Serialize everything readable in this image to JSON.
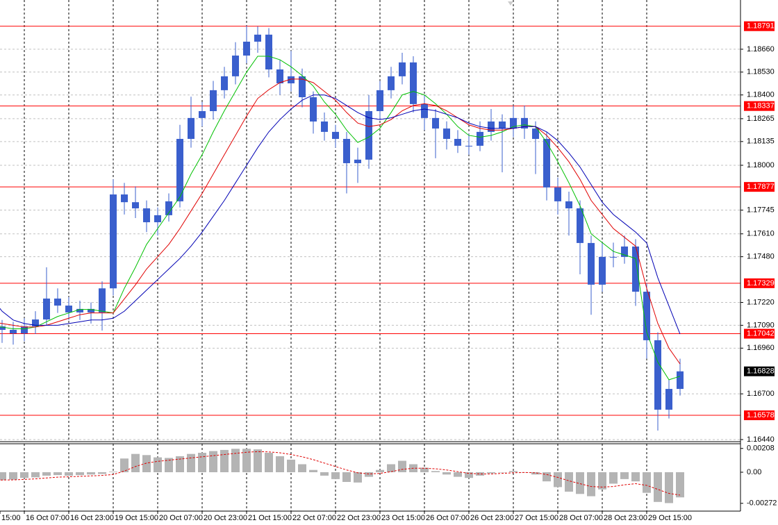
{
  "chart_data": {
    "type": "candlestick",
    "categories": [
      "15:00",
      null,
      null,
      null,
      "16 Oct 07:00",
      null,
      null,
      null,
      "16 Oct 23:00",
      null,
      null,
      null,
      "19 Oct 15:00",
      null,
      null,
      null,
      "20 Oct 07:00",
      null,
      null,
      null,
      "20 Oct 23:00",
      null,
      null,
      null,
      "21 Oct 15:00",
      null,
      null,
      null,
      "22 Oct 07:00",
      null,
      null,
      null,
      "22 Oct 23:00",
      null,
      null,
      null,
      "23 Oct 15:00",
      null,
      null,
      null,
      "26 Oct 07:00",
      null,
      null,
      null,
      "26 Oct 23:00",
      null,
      null,
      null,
      "27 Oct 15:00",
      null,
      null,
      null,
      "28 Oct 07:00",
      null,
      null,
      null,
      "28 Oct 23:00",
      null,
      null,
      null,
      "29 Oct 15:00",
      null,
      null,
      null
    ],
    "open": [
      1.17163,
      1.17123,
      1.17084,
      1.17064,
      1.17044,
      1.17084,
      1.17123,
      1.17242,
      1.17202,
      1.17163,
      1.17183,
      1.17163,
      1.173,
      1.17834,
      1.1779,
      1.17755,
      1.17676,
      1.17716,
      1.17795,
      1.1815,
      1.18269,
      1.18308,
      1.18427,
      1.18506,
      1.18624,
      1.18703,
      1.18743,
      1.18545,
      1.18466,
      1.18506,
      1.18387,
      1.18249,
      1.1819,
      1.1815,
      1.18012,
      1.18032,
      1.18308,
      1.18427,
      1.18506,
      1.18585,
      1.18348,
      1.18269,
      1.18209,
      1.1815,
      1.18111,
      1.18111,
      1.1819,
      1.18249,
      1.18209,
      1.18269,
      1.18209,
      1.1815,
      1.17874,
      1.17795,
      1.17755,
      1.17558,
      1.17321,
      1.17479,
      1.17479,
      1.17538,
      1.17281,
      1.17005,
      1.1661,
      1.16728
    ],
    "high": [
      1.172,
      1.1716,
      1.1712,
      1.1711,
      1.1713,
      1.1717,
      1.1742,
      1.173,
      1.1725,
      1.1723,
      1.1722,
      1.1734,
      1.1792,
      1.179,
      1.1788,
      1.178,
      1.1776,
      1.1784,
      1.1823,
      1.1839,
      1.1836,
      1.1848,
      1.1856,
      1.187,
      1.18794,
      1.1879,
      1.1878,
      1.186,
      1.1865,
      1.1855,
      1.1842,
      1.183,
      1.1823,
      1.1819,
      1.181,
      1.184,
      1.1848,
      1.1856,
      1.1864,
      1.1862,
      1.184,
      1.1832,
      1.1825,
      1.182,
      1.1818,
      1.1825,
      1.1832,
      1.1829,
      1.1834,
      1.1834,
      1.1825,
      1.1819,
      1.1793,
      1.1785,
      1.178,
      1.176,
      1.1756,
      1.1756,
      1.176,
      1.1758,
      1.1733,
      1.1705,
      1.1678,
      1.169
    ],
    "low": [
      1.1705,
      1.1704,
      1.1699,
      1.1698,
      1.17,
      1.1704,
      1.1709,
      1.1716,
      1.1712,
      1.1712,
      1.171,
      1.1706,
      1.1726,
      1.1772,
      1.177,
      1.1762,
      1.176,
      1.1768,
      1.1776,
      1.181,
      1.1822,
      1.1826,
      1.1838,
      1.1846,
      1.1858,
      1.1864,
      1.185,
      1.184,
      1.1842,
      1.1833,
      1.1818,
      1.1814,
      1.181,
      1.1784,
      1.179,
      1.1798,
      1.1826,
      1.1838,
      1.1846,
      1.183,
      1.182,
      1.1804,
      1.1809,
      1.1807,
      1.1806,
      1.1808,
      1.1814,
      1.1796,
      1.1816,
      1.1815,
      1.1795,
      1.178,
      1.1772,
      1.176,
      1.1738,
      1.1715,
      1.1728,
      1.1742,
      1.1744,
      1.172,
      1.169,
      1.16491,
      1.1656,
      1.1669
    ],
    "close": [
      1.17123,
      1.17084,
      1.17064,
      1.17044,
      1.17084,
      1.17123,
      1.17242,
      1.17202,
      1.17163,
      1.17183,
      1.17163,
      1.173,
      1.17834,
      1.1779,
      1.17755,
      1.17676,
      1.17716,
      1.17795,
      1.1815,
      1.18269,
      1.18308,
      1.18427,
      1.18506,
      1.18624,
      1.18703,
      1.18743,
      1.18545,
      1.18466,
      1.18506,
      1.18387,
      1.18249,
      1.1819,
      1.1815,
      1.18012,
      1.18032,
      1.18308,
      1.18427,
      1.18506,
      1.18585,
      1.18348,
      1.18269,
      1.18209,
      1.1815,
      1.18111,
      1.18111,
      1.1819,
      1.18249,
      1.18209,
      1.18269,
      1.18209,
      1.1815,
      1.17874,
      1.17795,
      1.17755,
      1.17558,
      1.17321,
      1.17479,
      1.17479,
      1.17538,
      1.17281,
      1.17005,
      1.1661,
      1.16728,
      1.16828
    ],
    "color": "#3a5fcd",
    "lines": [
      {
        "color": "#00c000",
        "values": [
          1.171,
          1.1709,
          1.1708,
          1.1707,
          1.1707,
          1.1708,
          1.1711,
          1.1714,
          1.1716,
          1.1718,
          1.1718,
          1.1717,
          1.1716,
          1.173,
          1.1742,
          1.1755,
          1.1764,
          1.1773,
          1.1782,
          1.1795,
          1.1806,
          1.1819,
          1.1831,
          1.1842,
          1.1853,
          1.1862,
          1.1862,
          1.186,
          1.1856,
          1.1851,
          1.1845,
          1.1836,
          1.1829,
          1.182,
          1.1813,
          1.1816,
          1.1821,
          1.183,
          1.184,
          1.1842,
          1.184,
          1.1835,
          1.1829,
          1.1822,
          1.1817,
          1.1816,
          1.1817,
          1.1819,
          1.1822,
          1.1823,
          1.1822,
          1.1813,
          1.1802,
          1.179,
          1.1777,
          1.1761,
          1.1756,
          1.1751,
          1.1749,
          1.1747,
          1.1705,
          1.1688,
          1.1678,
          1.168
        ]
      },
      {
        "color": "#e00000",
        "values": [
          1.1712,
          1.1711,
          1.171,
          1.1709,
          1.1708,
          1.1708,
          1.1709,
          1.1711,
          1.1713,
          1.1715,
          1.1716,
          1.1716,
          1.1716,
          1.1724,
          1.1732,
          1.1741,
          1.1748,
          1.1755,
          1.1764,
          1.1774,
          1.1784,
          1.1795,
          1.1806,
          1.1817,
          1.1828,
          1.1838,
          1.1843,
          1.1847,
          1.1849,
          1.1849,
          1.1847,
          1.1842,
          1.1837,
          1.183,
          1.1824,
          1.1822,
          1.1823,
          1.1826,
          1.1831,
          1.1834,
          1.1835,
          1.1834,
          1.1831,
          1.1827,
          1.1823,
          1.1821,
          1.182,
          1.182,
          1.1821,
          1.1822,
          1.1822,
          1.1817,
          1.181,
          1.1802,
          1.1792,
          1.178,
          1.1772,
          1.1764,
          1.1759,
          1.1754,
          1.173,
          1.171,
          1.1696,
          1.1687
        ]
      },
      {
        "color": "#0000b4",
        "values": [
          1.1735,
          1.1725,
          1.1717,
          1.1712,
          1.171,
          1.1709,
          1.1709,
          1.1709,
          1.171,
          1.1711,
          1.1712,
          1.1712,
          1.1713,
          1.1717,
          1.1723,
          1.1729,
          1.1735,
          1.1741,
          1.1747,
          1.1754,
          1.1762,
          1.1771,
          1.178,
          1.179,
          1.18,
          1.181,
          1.1819,
          1.1826,
          1.1832,
          1.1837,
          1.184,
          1.184,
          1.1838,
          1.1834,
          1.183,
          1.1827,
          1.1826,
          1.1827,
          1.1829,
          1.1831,
          1.1832,
          1.1831,
          1.1829,
          1.1827,
          1.1824,
          1.1822,
          1.1821,
          1.1821,
          1.1821,
          1.1822,
          1.1822,
          1.1819,
          1.1814,
          1.1807,
          1.1799,
          1.1789,
          1.1779,
          1.1772,
          1.1767,
          1.1762,
          1.17558,
          1.1736,
          1.172,
          1.1704
        ]
      }
    ],
    "ylim": [
      1.16432,
      1.1894
    ],
    "yticks": [
      {
        "value": 1.1644,
        "label": "1.16440"
      },
      {
        "value": 1.167,
        "label": "1.16700"
      },
      {
        "value": 1.1696,
        "label": "1.16960"
      },
      {
        "value": 1.1709,
        "label": "1.17090"
      },
      {
        "value": 1.1722,
        "label": "1.17220"
      },
      {
        "value": 1.1748,
        "label": "1.17480"
      },
      {
        "value": 1.1761,
        "label": "1.17610"
      },
      1.17745,
      {
        "value": 1.18,
        "label": "1.18000"
      },
      1.18135,
      1.18265,
      {
        "value": 1.184,
        "label": "1.18400"
      },
      {
        "value": 1.1853,
        "label": "1.18530"
      },
      {
        "value": 1.1866,
        "label": "1.18660"
      }
    ],
    "grid": true,
    "levels": [
      1.18791,
      1.18337,
      1.17877,
      1.17329,
      1.17042,
      1.16578
    ],
    "level_color": "#ff0000",
    "last_price": 1.16828,
    "macd": {
      "histogram": [
        -0.0006,
        -0.00065,
        -0.0007,
        -0.00065,
        -0.0005,
        -0.00045,
        -0.0003,
        -0.00025,
        -0.0003,
        -0.00025,
        -0.0002,
        -0.00015,
        5e-05,
        0.0012,
        0.0016,
        0.0015,
        0.0013,
        0.00125,
        0.0014,
        0.0016,
        0.0017,
        0.00185,
        0.00195,
        0.00205,
        0.00205,
        0.002,
        0.0017,
        0.0014,
        0.0011,
        0.0007,
        0.0002,
        -0.0003,
        -0.0006,
        -0.00085,
        -0.0009,
        -0.0004,
        0.0002,
        0.0007,
        0.001,
        0.0007,
        0.0004,
        0.0001,
        -0.0002,
        -0.0004,
        -0.0005,
        -0.0003,
        -0.0001,
        0,
        0.0001,
        0,
        -0.0002,
        -0.0008,
        -0.0013,
        -0.0017,
        -0.0019,
        -0.0021,
        -0.0015,
        -0.001,
        -0.0006,
        -0.0008,
        -0.0018,
        -0.0026,
        -0.0027,
        -0.0022
      ],
      "signal": [
        -0.0007,
        -0.00068,
        -0.00068,
        -0.00067,
        -0.00063,
        -0.00058,
        -0.0005,
        -0.00043,
        -0.0004,
        -0.00036,
        -0.00032,
        -0.00028,
        -0.0002,
        0.0001,
        0.0005,
        0.0008,
        0.00095,
        0.00105,
        0.00115,
        0.00125,
        0.00135,
        0.00145,
        0.00155,
        0.00165,
        0.00175,
        0.0018,
        0.00178,
        0.0017,
        0.00155,
        0.00135,
        0.0011,
        0.0008,
        0.0005,
        0.0002,
        -5e-05,
        -0.00015,
        -0.0001,
        5e-05,
        0.00025,
        0.00035,
        0.00035,
        0.0003,
        0.0002,
        5e-05,
        -0.0001,
        -0.00015,
        -0.00015,
        -0.0001,
        -5e-05,
        -2e-05,
        -5e-05,
        -0.0002,
        -0.00045,
        -0.00075,
        -0.001,
        -0.00125,
        -0.0013,
        -0.00125,
        -0.0011,
        -0.001,
        -0.00115,
        -0.0015,
        -0.00185,
        -0.002
      ],
      "histogram_color": "#b4b4b4",
      "signal_color": "#e00000",
      "ylim": [
        -0.00334,
        0.00243
      ],
      "yticks": [
        -0.00272,
        {
          "value": 0,
          "label": "0.00"
        },
        0.00208
      ]
    }
  }
}
